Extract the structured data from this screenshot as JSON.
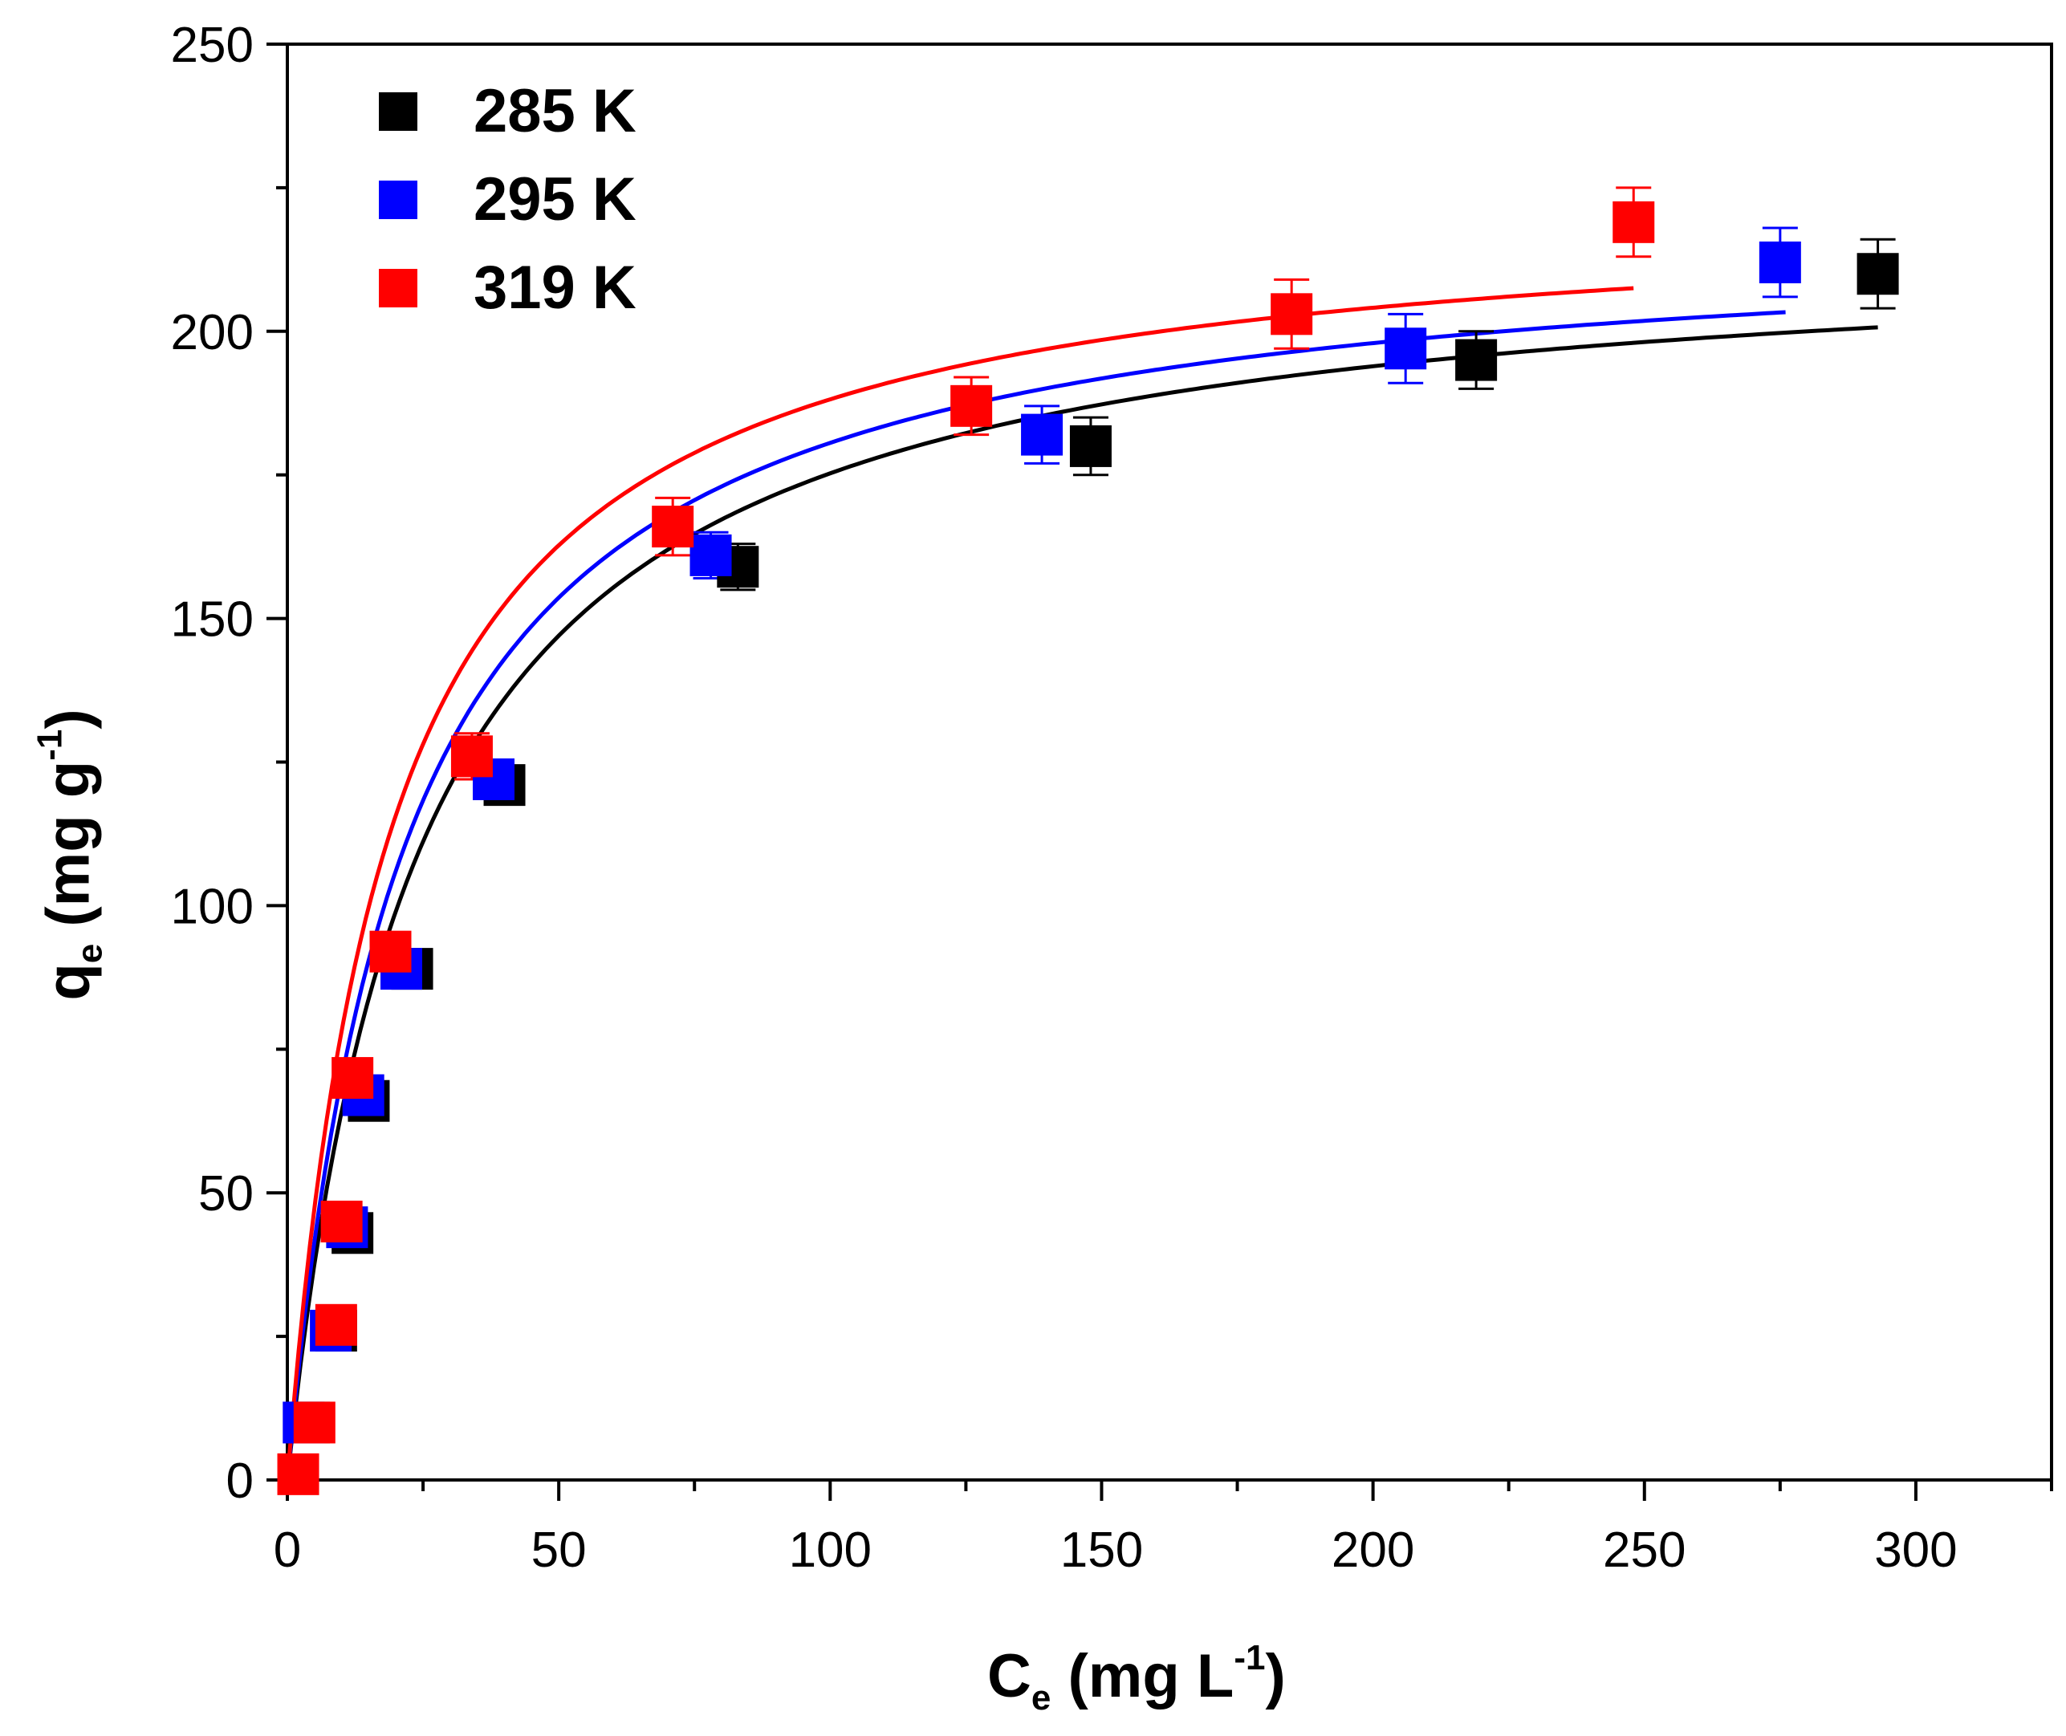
{
  "chart_data": {
    "type": "scatter",
    "title": "",
    "xlabel": {
      "main": "C",
      "sub": "e",
      "pre": " (mg L",
      "sup": "-1",
      "post": ")"
    },
    "ylabel": {
      "main": "q",
      "sub": "e",
      "pre": " (mg g",
      "sup": "-1",
      "post": ")"
    },
    "xlim": [
      0,
      325
    ],
    "ylim": [
      0,
      250
    ],
    "xticks": [
      0,
      50,
      100,
      150,
      200,
      250,
      300
    ],
    "yticks": [
      0,
      50,
      100,
      150,
      200,
      250
    ],
    "grid": false,
    "legend_position": "top-left",
    "series": [
      {
        "name": "285 K",
        "color": "#000000",
        "points": [
          {
            "x": 4,
            "y": 10,
            "err": 2
          },
          {
            "x": 9,
            "y": 26,
            "err": 2
          },
          {
            "x": 12,
            "y": 43,
            "err": 2
          },
          {
            "x": 15,
            "y": 66,
            "err": 3
          },
          {
            "x": 23,
            "y": 89,
            "err": 3
          },
          {
            "x": 40,
            "y": 121,
            "err": 3
          },
          {
            "x": 83,
            "y": 159,
            "err": 4
          },
          {
            "x": 148,
            "y": 180,
            "err": 5
          },
          {
            "x": 219,
            "y": 195,
            "err": 5
          },
          {
            "x": 293,
            "y": 210,
            "err": 6
          }
        ],
        "fit": {
          "qmax": 217,
          "K": 0.042,
          "xmax": 293
        }
      },
      {
        "name": "295 K",
        "color": "#0000ff",
        "points": [
          {
            "x": 3,
            "y": 10,
            "err": 2
          },
          {
            "x": 8,
            "y": 26,
            "err": 2
          },
          {
            "x": 11,
            "y": 44,
            "err": 2
          },
          {
            "x": 14,
            "y": 67,
            "err": 3
          },
          {
            "x": 21,
            "y": 89,
            "err": 3
          },
          {
            "x": 38,
            "y": 122,
            "err": 3
          },
          {
            "x": 78,
            "y": 161,
            "err": 4
          },
          {
            "x": 139,
            "y": 182,
            "err": 5
          },
          {
            "x": 206,
            "y": 197,
            "err": 6
          },
          {
            "x": 275,
            "y": 212,
            "err": 6
          }
        ],
        "fit": {
          "qmax": 219,
          "K": 0.047,
          "xmax": 276
        }
      },
      {
        "name": "319 K",
        "color": "#ff0000",
        "points": [
          {
            "x": 2,
            "y": 1,
            "err": 1
          },
          {
            "x": 5,
            "y": 10,
            "err": 2
          },
          {
            "x": 9,
            "y": 27,
            "err": 2
          },
          {
            "x": 10,
            "y": 45,
            "err": 2
          },
          {
            "x": 12,
            "y": 70,
            "err": 3
          },
          {
            "x": 19,
            "y": 92,
            "err": 3
          },
          {
            "x": 34,
            "y": 126,
            "err": 4
          },
          {
            "x": 71,
            "y": 166,
            "err": 5
          },
          {
            "x": 126,
            "y": 187,
            "err": 5
          },
          {
            "x": 185,
            "y": 203,
            "err": 6
          },
          {
            "x": 248,
            "y": 219,
            "err": 6
          }
        ],
        "fit": {
          "qmax": 223,
          "K": 0.054,
          "xmax": 248
        }
      }
    ]
  }
}
